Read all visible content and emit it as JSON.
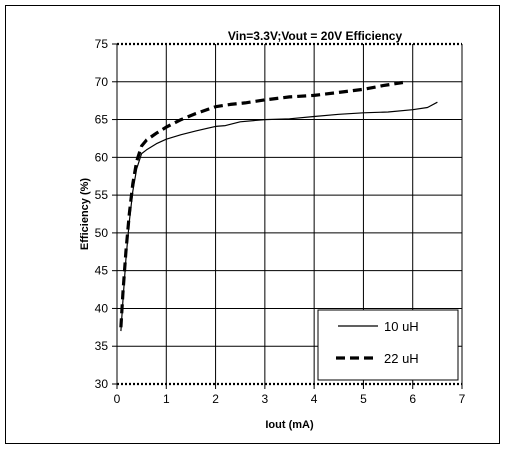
{
  "chart_data": {
    "type": "line",
    "title": "Vin=3.3V;Vout = 20V Efficiency",
    "xlabel": "Iout (mA)",
    "ylabel": "Efficiency (%)",
    "xlim": [
      0,
      7
    ],
    "ylim": [
      30,
      75
    ],
    "xticks": [
      0,
      1,
      2,
      3,
      4,
      5,
      6,
      7
    ],
    "yticks": [
      30,
      35,
      40,
      45,
      50,
      55,
      60,
      65,
      70,
      75
    ],
    "grid": true,
    "legend_position": "bottom-right",
    "series": [
      {
        "name": "10 uH",
        "style": "solid",
        "color": "#000000",
        "x": [
          0.08,
          0.12,
          0.18,
          0.25,
          0.32,
          0.4,
          0.5,
          0.6,
          0.8,
          1.0,
          1.3,
          1.6,
          2.0,
          2.2,
          2.5,
          3.0,
          3.5,
          4.0,
          4.5,
          5.0,
          5.5,
          6.0,
          6.3,
          6.5
        ],
        "y": [
          37.0,
          41.0,
          46.5,
          51.5,
          55.5,
          58.5,
          60.5,
          61.0,
          61.8,
          62.4,
          63.0,
          63.5,
          64.1,
          64.2,
          64.7,
          65.0,
          65.1,
          65.4,
          65.7,
          65.9,
          66.0,
          66.3,
          66.6,
          67.3
        ]
      },
      {
        "name": "22 uH",
        "style": "dashed",
        "color": "#000000",
        "x": [
          0.08,
          0.12,
          0.18,
          0.25,
          0.32,
          0.4,
          0.5,
          0.6,
          0.8,
          1.0,
          1.3,
          1.6,
          2.0,
          2.3,
          2.6,
          3.0,
          3.5,
          4.0,
          4.5,
          5.0,
          5.4,
          5.8
        ],
        "y": [
          37.5,
          42.0,
          47.5,
          52.5,
          56.5,
          59.5,
          61.5,
          62.3,
          63.2,
          64.0,
          65.0,
          65.8,
          66.7,
          67.0,
          67.2,
          67.6,
          68.0,
          68.2,
          68.6,
          69.0,
          69.5,
          69.9
        ]
      }
    ]
  }
}
